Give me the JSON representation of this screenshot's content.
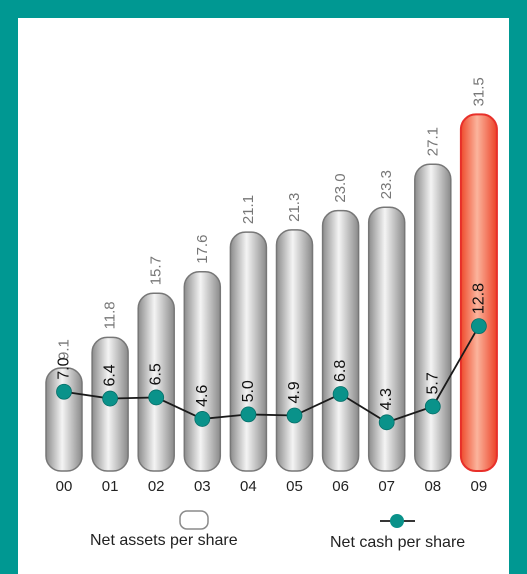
{
  "chart_data": {
    "type": "bar",
    "categories": [
      "00",
      "01",
      "02",
      "03",
      "04",
      "05",
      "06",
      "07",
      "08",
      "09"
    ],
    "series": [
      {
        "name": "Net assets per share",
        "type": "bar",
        "values": [
          9.1,
          11.8,
          15.7,
          17.6,
          21.1,
          21.3,
          23.0,
          23.3,
          27.1,
          31.5
        ],
        "labels": [
          "9.1",
          "11.8",
          "15.7",
          "17.6",
          "21.1",
          "21.3",
          "23.0",
          "23.3",
          "27.1",
          "31.5"
        ]
      },
      {
        "name": "Net cash per share",
        "type": "line",
        "values": [
          7.0,
          6.4,
          6.5,
          4.6,
          5.0,
          4.9,
          6.8,
          4.3,
          5.7,
          12.8
        ],
        "labels": [
          "7.0",
          "6.4",
          "6.5",
          "4.6",
          "5.0",
          "4.9",
          "6.8",
          "4.3",
          "5.7",
          "12.8"
        ]
      }
    ],
    "highlight_category": "09",
    "ylim": [
      0,
      34
    ],
    "grid": false,
    "legend_position": "bottom",
    "colors": {
      "bar_fill": "#b5b5b5",
      "bar_stroke": "#777777",
      "highlight_fill": "#f26a44",
      "highlight_stroke": "#e8302a",
      "line": "#1a1a1a",
      "marker": "#0a928a",
      "frame": "#009892",
      "value_label": "#777777",
      "inner_label": "#111111"
    }
  }
}
